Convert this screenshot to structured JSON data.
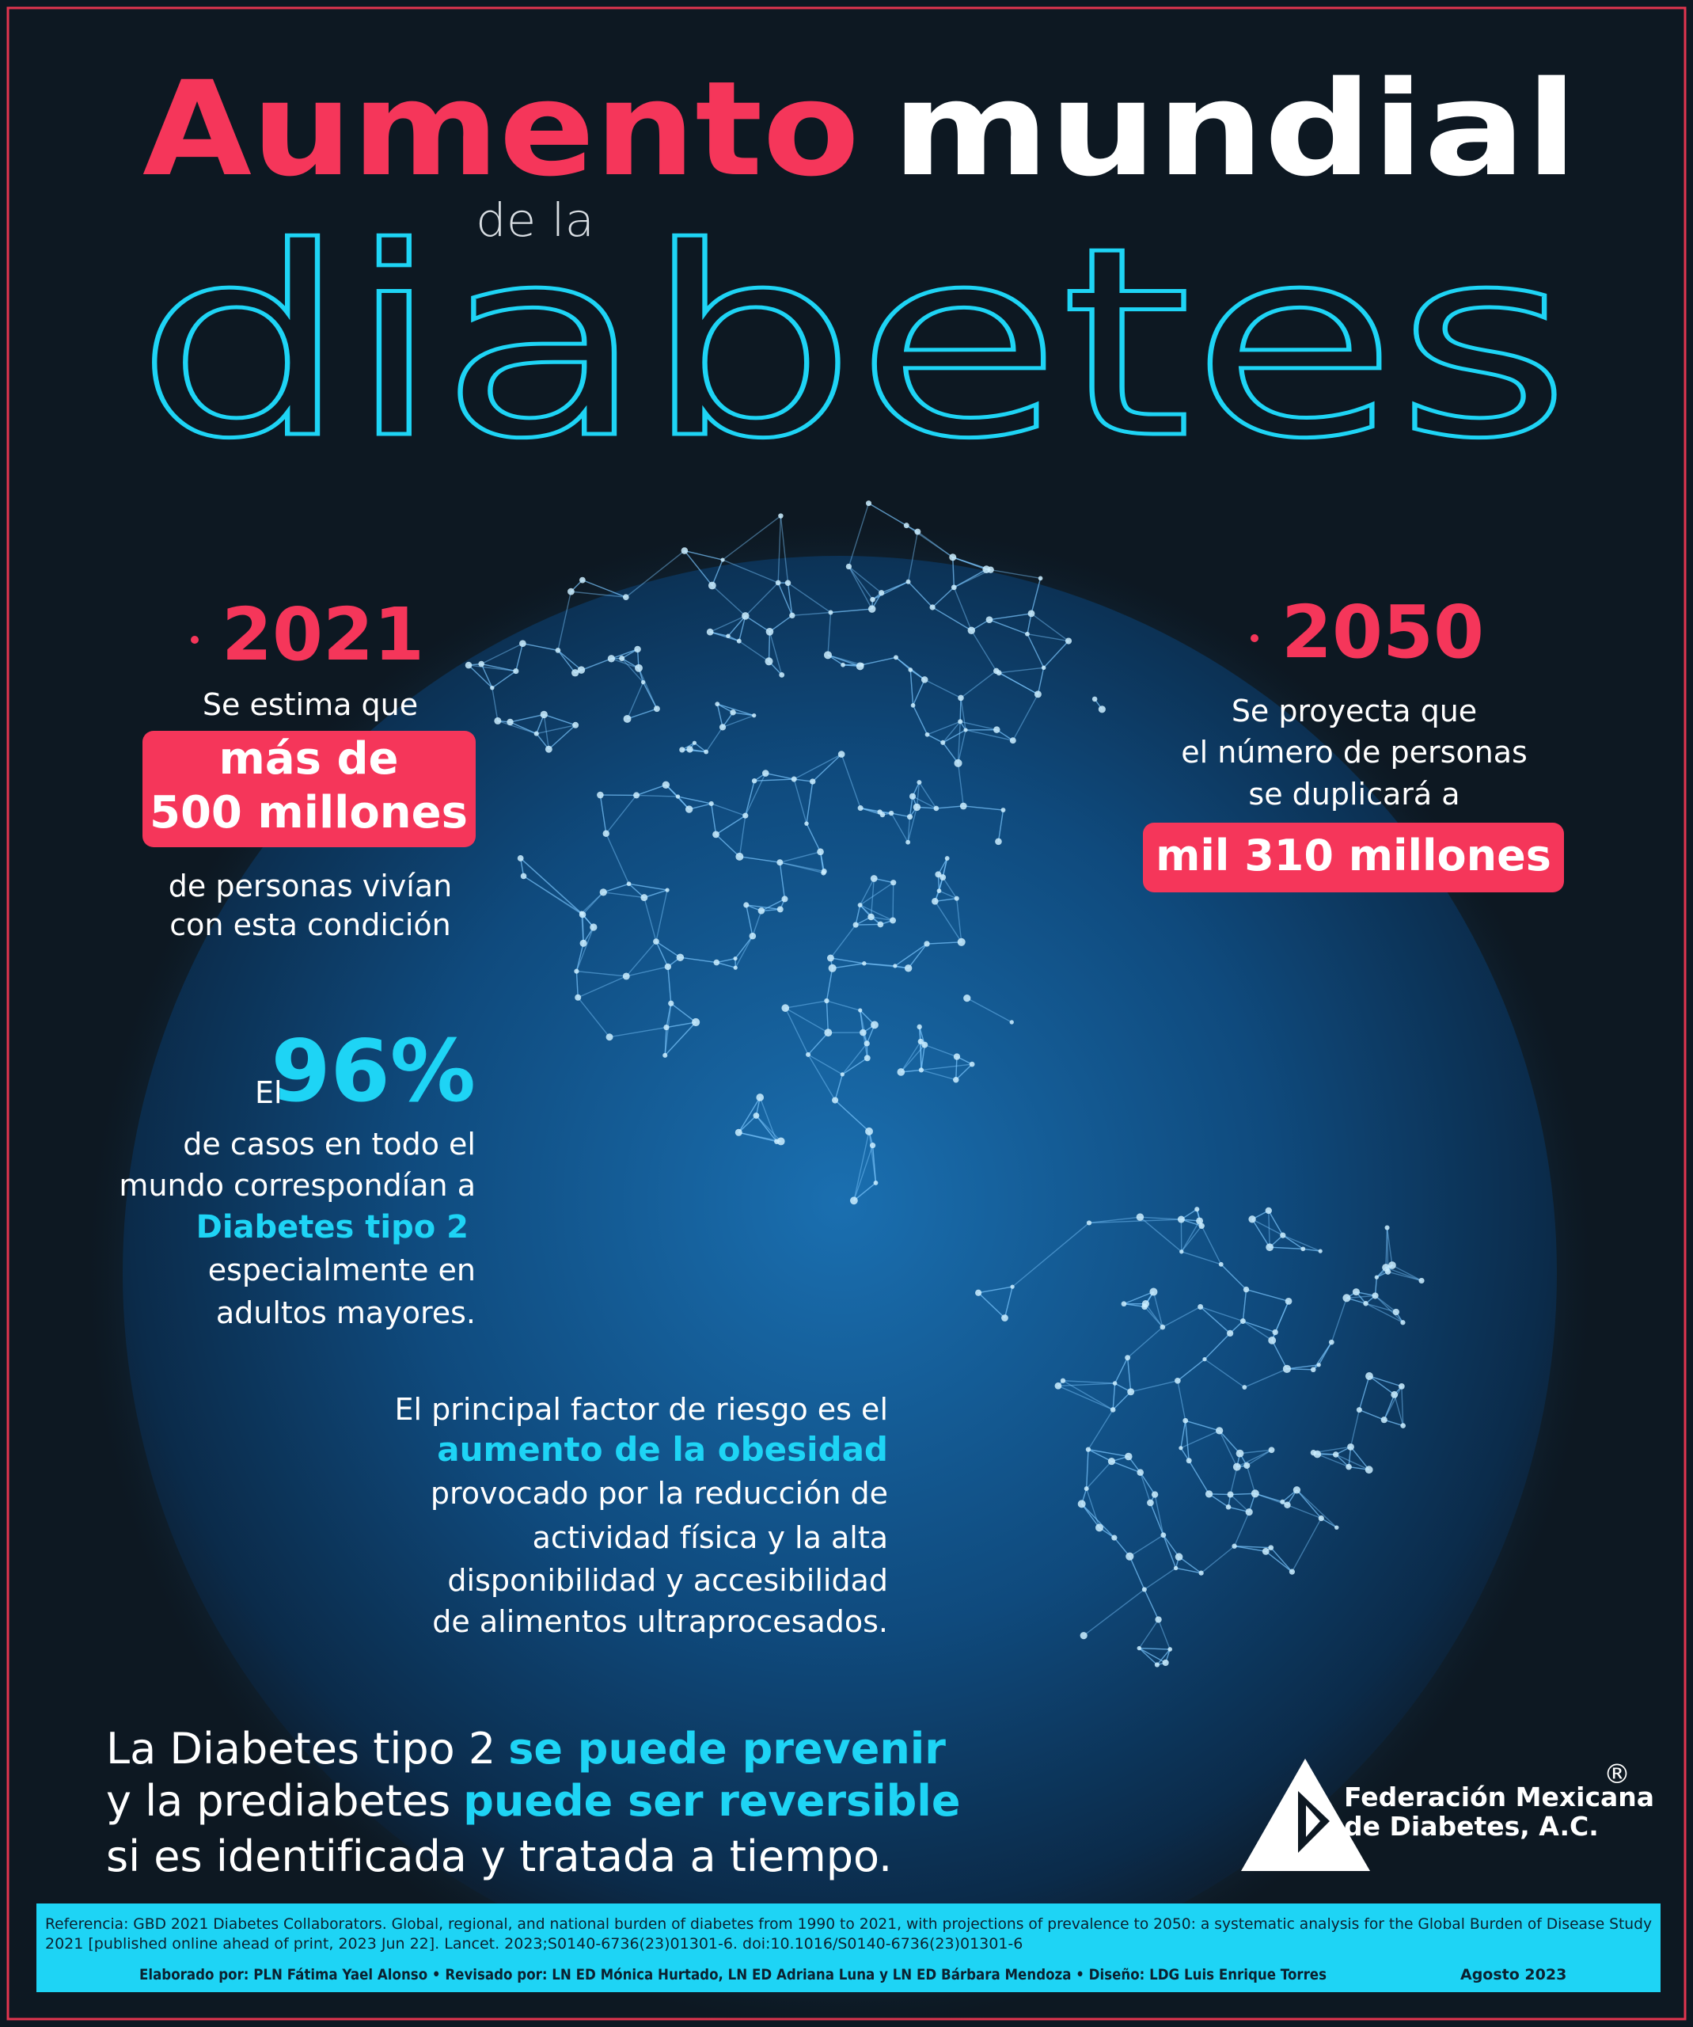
{
  "title": {
    "part1": "Aumento",
    "part2": "mundial",
    "part3": "de la",
    "part4": "diabetes"
  },
  "stat_2021": {
    "year": "2021",
    "intro": "Se estima que",
    "highlight": [
      "más de",
      "500 millones"
    ],
    "outro": [
      "de personas vivían",
      "con esta condición"
    ]
  },
  "stat_2050": {
    "year": "2050",
    "intro": [
      "Se proyecta que",
      "el número de personas",
      "se duplicará a"
    ],
    "highlight": "mil 310 millones"
  },
  "stat_96": {
    "prefix": "El",
    "value": "96%",
    "lines": [
      "de casos en todo el",
      "mundo correspondían a"
    ],
    "highlight": "Diabetes tipo 2",
    "lines2": [
      "especialmente en",
      "adultos mayores."
    ]
  },
  "risk": {
    "line1": "El principal factor de riesgo es el",
    "highlight": "aumento de la obesidad",
    "lines": [
      "provocado por la reducción de",
      "actividad física y la alta",
      "disponibilidad y accesibilidad",
      "de alimentos ultraprocesados."
    ]
  },
  "prevention": [
    [
      "La Diabetes tipo 2",
      "se puede prevenir"
    ],
    [
      "y la prediabetes",
      "puede ser reversible"
    ],
    [
      "si es identificada y tratada a tiempo."
    ]
  ],
  "logo": {
    "name": [
      "Federación Mexicana",
      "de Diabetes, A.C."
    ],
    "mark": "®"
  },
  "footer": {
    "reference": [
      "Referencia: GBD 2021 Diabetes Collaborators. Global, regional, and national burden of diabetes from 1990 to 2021, with projections of prevalence to 2050: a systematic analysis for the Global Burden of Disease Study",
      "2021 [published online ahead of print, 2023 Jun 22]. Lancet. 2023;S0140-6736(23)01301-6. doi:10.1016/S0140-6736(23)01301-6"
    ],
    "credits": "Elaborado por: PLN Fátima Yael Alonso • Revisado por: LN ED Mónica Hurtado, LN ED Adriana Luna y LN ED Bárbara Mendoza • Diseño: LDG Luis Enrique Torres",
    "date": "Agosto 2023"
  }
}
